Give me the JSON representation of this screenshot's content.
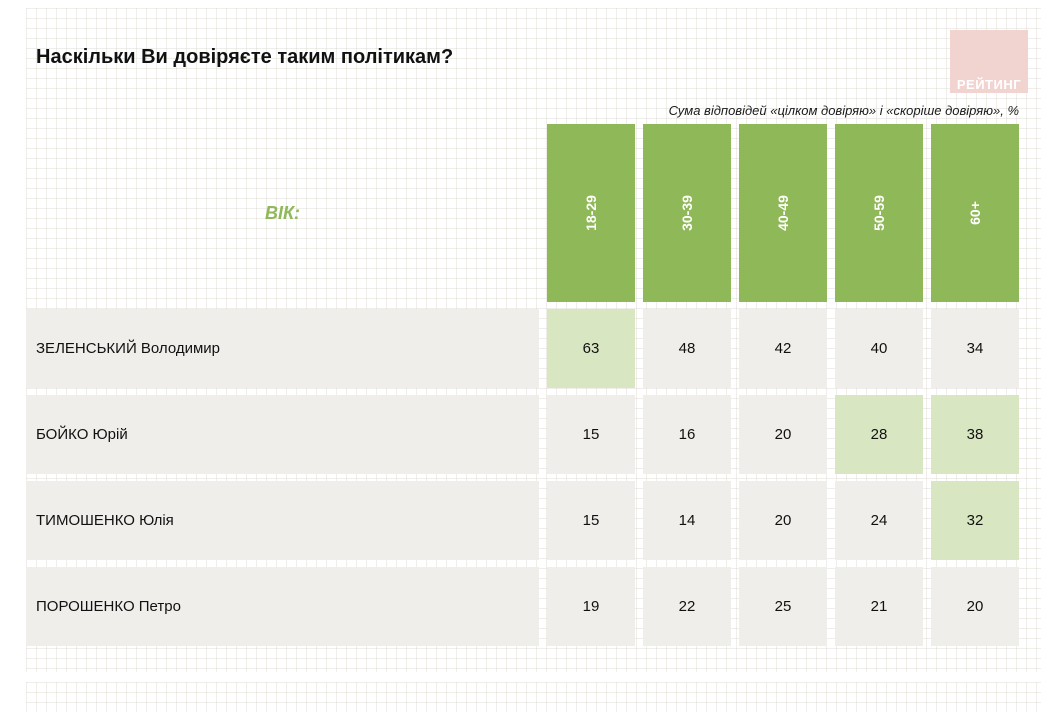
{
  "header": {
    "title": "Наскільки Ви довіряєте таким політикам?",
    "subtitle": "Сума відповідей «цілком довіряю» і «скоріше довіряю», %",
    "logo_text": "РЕЙТИНГ"
  },
  "table": {
    "age_label": "ВІК:"
  },
  "chart_data": {
    "type": "table",
    "title": "Наскільки Ви довіряєте таким політикам?",
    "subtitle": "Сума відповідей «цілком довіряю» і «скоріше довіряю», %",
    "group_label": "ВІК:",
    "units": "%",
    "columns": [
      "18-29",
      "30-39",
      "40-49",
      "50-59",
      "60+"
    ],
    "rows": [
      {
        "label": "ЗЕЛЕНСЬКИЙ Володимир",
        "values": [
          63,
          48,
          42,
          40,
          34
        ],
        "highlight": [
          0
        ]
      },
      {
        "label": "БОЙКО Юрій",
        "values": [
          15,
          16,
          20,
          28,
          38
        ],
        "highlight": [
          3,
          4
        ]
      },
      {
        "label": "ТИМОШЕНКО Юлія",
        "values": [
          15,
          14,
          20,
          24,
          32
        ],
        "highlight": [
          4
        ]
      },
      {
        "label": "ПОРОШЕНКО Петро",
        "values": [
          19,
          22,
          25,
          21,
          20
        ],
        "highlight": []
      }
    ]
  },
  "colors": {
    "header_green": "#8fb858",
    "highlight_green": "#d9e6c2",
    "row_gray": "#efeeeb",
    "logo_pink": "#f1d3d0"
  }
}
